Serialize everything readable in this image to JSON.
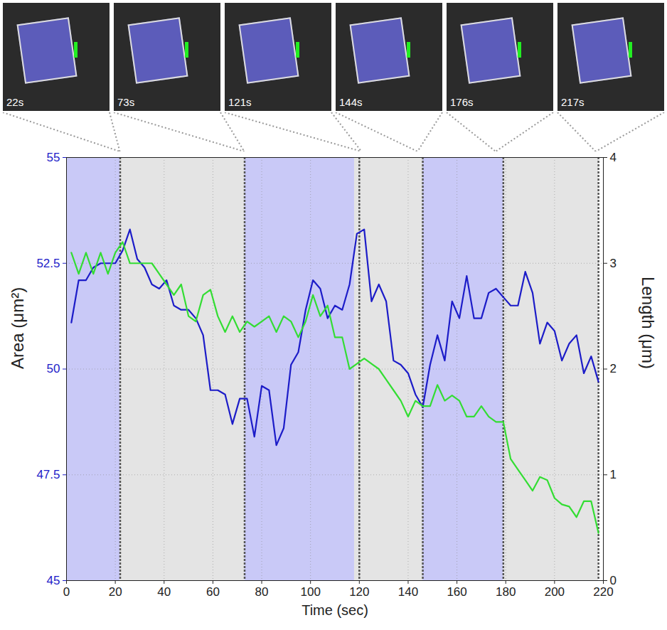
{
  "chart_data": {
    "type": "line",
    "x_label": "Time (sec)",
    "y_label": "Area (μm²)",
    "y2_label": "Length (μm)",
    "xlim": [
      0,
      220
    ],
    "xticks": [
      0,
      20,
      40,
      60,
      80,
      100,
      120,
      140,
      160,
      180,
      200,
      220
    ],
    "ylim": [
      45,
      55
    ],
    "yticks": [
      45,
      47.5,
      50,
      52.5,
      55
    ],
    "y2lim": [
      0,
      4
    ],
    "y2ticks": [
      0,
      1,
      2,
      3,
      4
    ],
    "grid": true,
    "x": [
      2,
      5,
      8,
      11,
      14,
      17,
      20,
      23,
      26,
      29,
      32,
      35,
      38,
      41,
      44,
      47,
      50,
      53,
      56,
      59,
      62,
      65,
      68,
      71,
      74,
      77,
      80,
      83,
      86,
      89,
      92,
      95,
      98,
      101,
      104,
      107,
      110,
      113,
      116,
      119,
      122,
      125,
      128,
      131,
      134,
      137,
      140,
      143,
      146,
      149,
      152,
      155,
      158,
      161,
      164,
      167,
      170,
      173,
      176,
      179,
      182,
      185,
      188,
      191,
      194,
      197,
      200,
      203,
      206,
      209,
      212,
      215,
      218
    ],
    "series": [
      {
        "name": "Area",
        "color": "#1c1cc8",
        "axis": "y",
        "values": [
          51.1,
          52.1,
          52.1,
          52.4,
          52.5,
          52.5,
          52.5,
          52.8,
          53.3,
          52.6,
          52.4,
          52.0,
          51.9,
          52.1,
          51.5,
          51.4,
          51.4,
          51.2,
          50.8,
          49.5,
          49.5,
          49.4,
          48.7,
          49.3,
          49.3,
          48.4,
          49.6,
          49.5,
          48.2,
          48.6,
          50.1,
          50.4,
          51.4,
          52.1,
          51.9,
          51.2,
          51.5,
          51.4,
          52.0,
          53.2,
          53.3,
          51.6,
          52.0,
          51.6,
          50.2,
          50.1,
          49.9,
          49.4,
          49.1,
          50.1,
          50.8,
          50.2,
          51.6,
          51.2,
          52.2,
          51.2,
          51.2,
          51.8,
          51.9,
          51.7,
          51.5,
          51.5,
          52.3,
          51.8,
          50.6,
          51.1,
          50.9,
          50.2,
          50.6,
          50.8,
          49.9,
          50.3,
          49.7
        ]
      },
      {
        "name": "Length",
        "color": "#33dd33",
        "axis": "y2",
        "values": [
          3.1,
          2.9,
          3.1,
          2.9,
          3.1,
          2.9,
          3.1,
          3.2,
          3.0,
          3.0,
          3.0,
          3.0,
          2.9,
          2.8,
          2.7,
          2.8,
          2.5,
          2.45,
          2.7,
          2.75,
          2.5,
          2.35,
          2.5,
          2.35,
          2.45,
          2.4,
          2.45,
          2.5,
          2.35,
          2.5,
          2.45,
          2.3,
          2.45,
          2.7,
          2.5,
          2.6,
          2.3,
          2.3,
          2.0,
          2.05,
          2.1,
          2.05,
          2.0,
          1.9,
          1.8,
          1.7,
          1.55,
          1.7,
          1.65,
          1.65,
          1.85,
          1.7,
          1.75,
          1.7,
          1.55,
          1.55,
          1.65,
          1.55,
          1.5,
          1.5,
          1.15,
          1.05,
          0.95,
          0.85,
          0.98,
          0.95,
          0.78,
          0.72,
          0.7,
          0.6,
          0.75,
          0.75,
          0.45
        ]
      }
    ],
    "bands": [
      {
        "start": 0,
        "end": 22,
        "color": "#c9c9f7"
      },
      {
        "start": 22,
        "end": 73,
        "color": "#e4e4e4"
      },
      {
        "start": 73,
        "end": 118,
        "color": "#c9c9f7"
      },
      {
        "start": 118,
        "end": 146,
        "color": "#e4e4e4"
      },
      {
        "start": 146,
        "end": 179,
        "color": "#c9c9f7"
      },
      {
        "start": 179,
        "end": 218,
        "color": "#e4e4e4"
      }
    ],
    "vlines": [
      22,
      73,
      120,
      146,
      179,
      218
    ],
    "frames": [
      {
        "time": 22,
        "label": "22s"
      },
      {
        "time": 73,
        "label": "73s"
      },
      {
        "time": 121,
        "label": "121s"
      },
      {
        "time": 144,
        "label": "144s"
      },
      {
        "time": 176,
        "label": "176s"
      },
      {
        "time": 217,
        "label": "217s"
      }
    ]
  }
}
